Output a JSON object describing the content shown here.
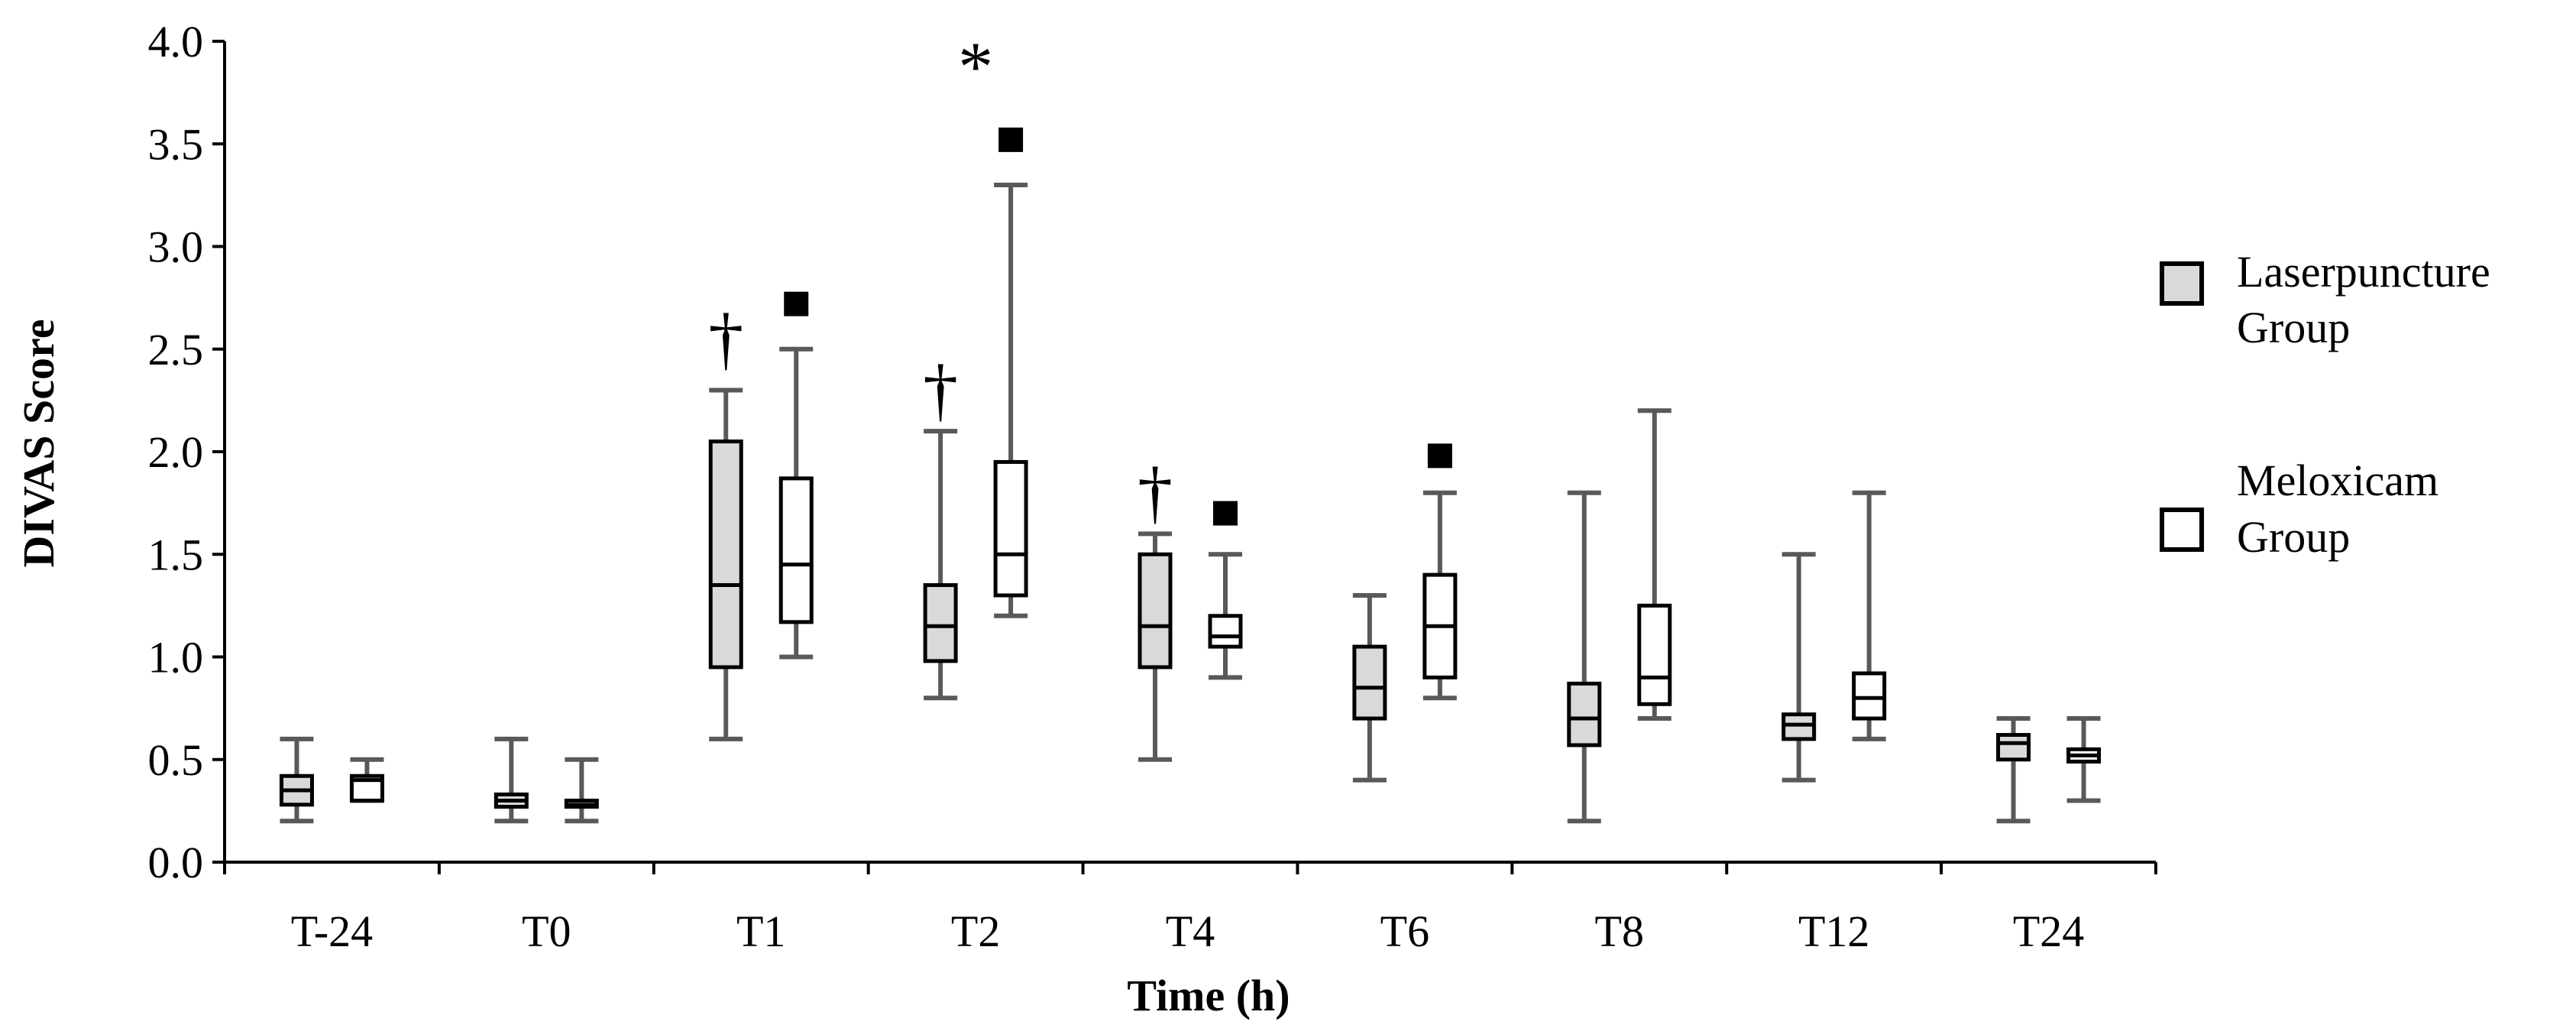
{
  "chart_data": {
    "type": "boxplot",
    "title": "",
    "xlabel": "Time (h)",
    "ylabel": "DIVAS Score",
    "ylim": [
      0,
      4.0
    ],
    "yticks": [
      "0.0",
      "0.5",
      "1.0",
      "1.5",
      "2.0",
      "2.5",
      "3.0",
      "3.5",
      "4.0"
    ],
    "categories": [
      "T-24",
      "T0",
      "T1",
      "T2",
      "T4",
      "T6",
      "T8",
      "T12",
      "T24"
    ],
    "legend": [
      {
        "line1": "Laserpuncture",
        "line2": "Group",
        "color": "#d9d9d9"
      },
      {
        "line1": "Meloxicam",
        "line2": "Group",
        "color": "#ffffff"
      }
    ],
    "colors": {
      "whisker": "#595959",
      "box_stroke": "#000000",
      "laser_fill": "#d9d9d9",
      "meloxicam_fill": "#ffffff"
    },
    "series": [
      {
        "name": "Laserpuncture Group",
        "boxes": [
          {
            "min": 0.2,
            "q1": 0.28,
            "median": 0.35,
            "q3": 0.42,
            "max": 0.6
          },
          {
            "min": 0.2,
            "q1": 0.27,
            "median": 0.3,
            "q3": 0.33,
            "max": 0.6
          },
          {
            "min": 0.6,
            "q1": 0.95,
            "median": 1.35,
            "q3": 2.05,
            "max": 2.3
          },
          {
            "min": 0.8,
            "q1": 0.98,
            "median": 1.15,
            "q3": 1.35,
            "max": 2.1
          },
          {
            "min": 0.5,
            "q1": 0.95,
            "median": 1.15,
            "q3": 1.5,
            "max": 1.6
          },
          {
            "min": 0.4,
            "q1": 0.7,
            "median": 0.85,
            "q3": 1.05,
            "max": 1.3
          },
          {
            "min": 0.2,
            "q1": 0.57,
            "median": 0.7,
            "q3": 0.87,
            "max": 1.8
          },
          {
            "min": 0.4,
            "q1": 0.6,
            "median": 0.67,
            "q3": 0.72,
            "max": 1.5
          },
          {
            "min": 0.2,
            "q1": 0.5,
            "median": 0.58,
            "q3": 0.62,
            "max": 0.7
          }
        ]
      },
      {
        "name": "Meloxicam Group",
        "boxes": [
          {
            "min": 0.3,
            "q1": 0.3,
            "median": 0.4,
            "q3": 0.42,
            "max": 0.5
          },
          {
            "min": 0.2,
            "q1": 0.27,
            "median": 0.28,
            "q3": 0.3,
            "max": 0.5
          },
          {
            "min": 1.0,
            "q1": 1.17,
            "median": 1.45,
            "q3": 1.87,
            "max": 2.5
          },
          {
            "min": 1.2,
            "q1": 1.3,
            "median": 1.5,
            "q3": 1.95,
            "max": 3.3
          },
          {
            "min": 0.9,
            "q1": 1.05,
            "median": 1.1,
            "q3": 1.2,
            "max": 1.5
          },
          {
            "min": 0.8,
            "q1": 0.9,
            "median": 1.15,
            "q3": 1.4,
            "max": 1.8
          },
          {
            "min": 0.7,
            "q1": 0.77,
            "median": 0.9,
            "q3": 1.25,
            "max": 2.2
          },
          {
            "min": 0.6,
            "q1": 0.7,
            "median": 0.8,
            "q3": 0.92,
            "max": 1.8
          },
          {
            "min": 0.3,
            "q1": 0.49,
            "median": 0.52,
            "q3": 0.55,
            "max": 0.7
          }
        ]
      }
    ],
    "annotations": [
      {
        "symbol": "†",
        "category": "T1",
        "series": 0,
        "y": 2.55
      },
      {
        "symbol": "■",
        "category": "T1",
        "series": 1,
        "y": 2.72
      },
      {
        "symbol": "*",
        "category": "T2",
        "series": "between",
        "y": 3.97
      },
      {
        "symbol": "†",
        "category": "T2",
        "series": 0,
        "y": 2.3
      },
      {
        "symbol": "■",
        "category": "T2",
        "series": 1,
        "y": 3.52
      },
      {
        "symbol": "†",
        "category": "T4",
        "series": 0,
        "y": 1.8
      },
      {
        "symbol": "■",
        "category": "T4",
        "series": 1,
        "y": 1.7
      },
      {
        "symbol": "■",
        "category": "T6",
        "series": 1,
        "y": 1.98
      }
    ]
  }
}
